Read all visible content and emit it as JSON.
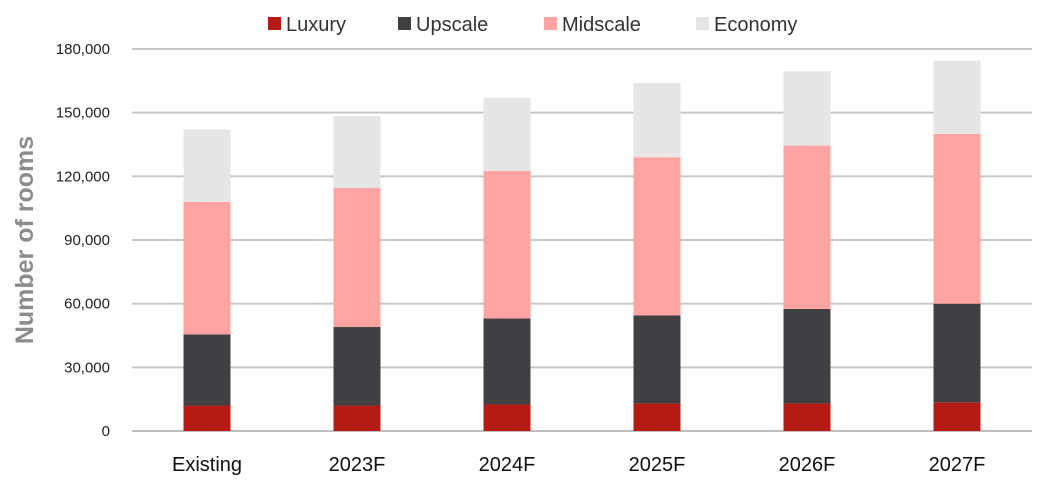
{
  "chart_data": {
    "type": "bar",
    "stacked": true,
    "categories": [
      "Existing",
      "2023F",
      "2024F",
      "2025F",
      "2026F",
      "2027F"
    ],
    "series": [
      {
        "name": "Luxury",
        "color": "#b51b14",
        "values": [
          12000,
          12000,
          12500,
          13000,
          13000,
          13500
        ]
      },
      {
        "name": "Upscale",
        "color": "#404042",
        "values": [
          33500,
          37000,
          40500,
          41500,
          44500,
          46500
        ]
      },
      {
        "name": "Midscale",
        "color": "#ffa3a3",
        "values": [
          62500,
          65500,
          69500,
          74500,
          77000,
          80000
        ]
      },
      {
        "name": "Economy",
        "color": "#e6e6e6",
        "values": [
          34000,
          34000,
          34500,
          35000,
          35000,
          34500
        ]
      }
    ],
    "xlabel": "",
    "ylabel": "Number of rooms",
    "ylim": [
      0,
      180000
    ],
    "yticks": [
      0,
      30000,
      60000,
      90000,
      120000,
      150000,
      180000
    ],
    "ytick_labels": [
      "0",
      "30,000",
      "60,000",
      "90,000",
      "120,000",
      "150,000",
      "180,000"
    ],
    "grid": true,
    "legend_position": "top-center"
  }
}
